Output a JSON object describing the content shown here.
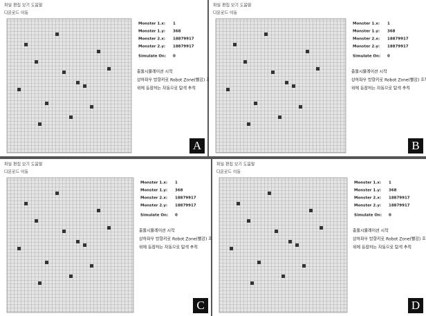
{
  "panels": [
    {
      "letter": "A",
      "menu": "파일 편집 보기 도움말",
      "toolbar": "다운로드   이동",
      "fields": [
        {
          "label": "Monster 1.x:",
          "value": 1
        },
        {
          "label": "Monster 1.y:",
          "value": 368
        },
        {
          "label": "Monster 2.x:",
          "value": 18879917
        },
        {
          "label": "Monster 2.y:",
          "value": 18879917
        },
        {
          "label": "Simulate On:",
          "value": 0
        }
      ],
      "notes": [
        "충돌시뮬레이션 시작",
        "상하좌우 방향키로 Robot Zone(빨강) 조작",
        "위에 등장하는 자동으로 탐색 추적"
      ]
    },
    {
      "letter": "B",
      "menu": "파일 편집 보기 도움말",
      "toolbar": "다운로드   이동",
      "fields": [
        {
          "label": "Monster 1.x:",
          "value": 1
        },
        {
          "label": "Monster 1.y:",
          "value": 368
        },
        {
          "label": "Monster 2.x:",
          "value": 18879917
        },
        {
          "label": "Monster 2.y:",
          "value": 18879917
        },
        {
          "label": "Simulate On:",
          "value": 0
        }
      ],
      "notes": [
        "충돌시뮬레이션 시작",
        "상하좌우 방향키로 Robot Zone(빨강) 조작",
        "위에 등장하는 자동으로 탐색 추적"
      ]
    },
    {
      "letter": "C",
      "menu": "파일 편집 보기 도움말",
      "toolbar": "다운로드   이동",
      "fields": [
        {
          "label": "Monster 1.x:",
          "value": 1
        },
        {
          "label": "Monster 1.y:",
          "value": 368
        },
        {
          "label": "Monster 2.x:",
          "value": 18879917
        },
        {
          "label": "Monster 2.y:",
          "value": 18879917
        },
        {
          "label": "Simulate On:",
          "value": 0
        }
      ],
      "notes": [
        "충돌시뮬레이션 시작",
        "상하좌우 방향키로 Robot Zone(빨강) 조작",
        "위에 등장하는 자동으로 탐색 추적"
      ]
    },
    {
      "letter": "D",
      "menu": "파일 편집 보기 도움말",
      "toolbar": "다운로드   이동",
      "fields": [
        {
          "label": "Monster 1.x:",
          "value": 1
        },
        {
          "label": "Monster 1.y:",
          "value": 368
        },
        {
          "label": "Monster 2.x:",
          "value": 18879917
        },
        {
          "label": "Monster 2.y:",
          "value": 18879917
        },
        {
          "label": "Simulate On:",
          "value": 0
        }
      ],
      "notes": [
        "충돌시뮬레이션 시작",
        "상하좌우 방향키로 Robot Zone(빨강) 조작",
        "위에 등장하는 자동으로 탐색 추적"
      ]
    }
  ]
}
